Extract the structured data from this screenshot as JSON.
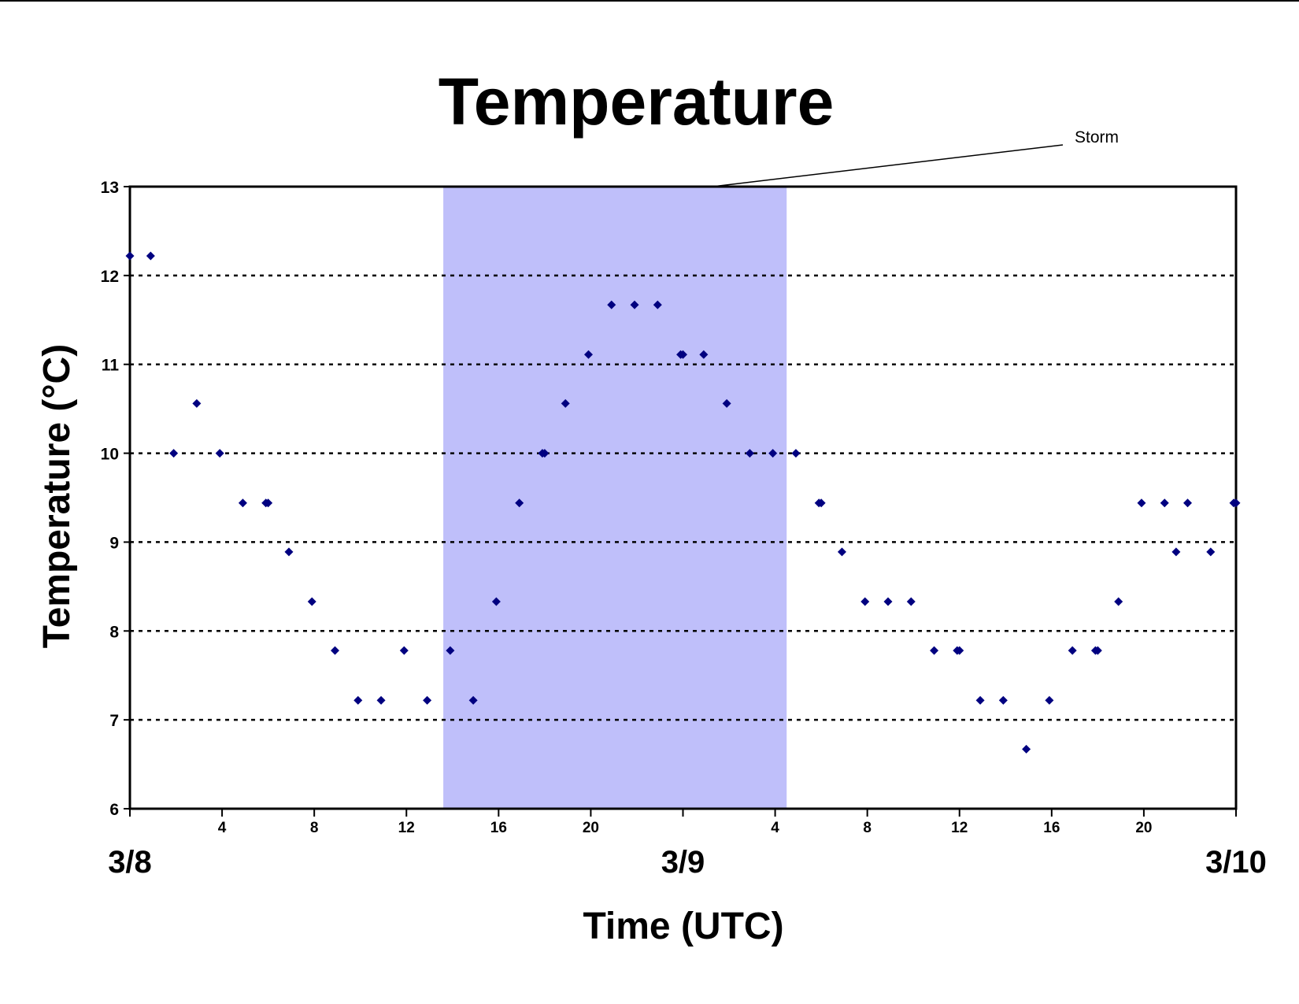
{
  "chart_data": {
    "type": "scatter",
    "title": "Temperature",
    "xlabel": "Time (UTC)",
    "ylabel": "Temperature (°C)",
    "x_unit": "hours UTC from 3/8 00:00",
    "xlim": [
      0,
      48
    ],
    "ylim": [
      6,
      13
    ],
    "y_ticks": [
      "6",
      "7",
      "8",
      "9",
      "10",
      "11",
      "12",
      "13"
    ],
    "x_tick_labels": [
      "4",
      "8",
      "12",
      "16",
      "20",
      "4",
      "8",
      "12",
      "16",
      "20"
    ],
    "x_tick_hours": [
      4,
      8,
      12,
      16,
      20,
      28,
      32,
      36,
      40,
      44
    ],
    "date_labels": [
      {
        "hour": 0,
        "label": "3/8"
      },
      {
        "hour": 24,
        "label": "3/9"
      },
      {
        "hour": 48,
        "label": "3/10"
      }
    ],
    "gridlines": "dotted horizontal at each degree",
    "highlight": {
      "label": "Storm",
      "x_start": 13.6,
      "x_end": 28.5,
      "color": "#bfbffa"
    },
    "marker_color": "#000080",
    "points": [
      {
        "x": 0,
        "y": 12.22
      },
      {
        "x": 0.9,
        "y": 12.22
      },
      {
        "x": 1.9,
        "y": 10.0
      },
      {
        "x": 2.9,
        "y": 10.56
      },
      {
        "x": 3.9,
        "y": 10.0
      },
      {
        "x": 4.9,
        "y": 9.44
      },
      {
        "x": 5.9,
        "y": 9.44
      },
      {
        "x": 6.0,
        "y": 9.44
      },
      {
        "x": 6.9,
        "y": 8.89
      },
      {
        "x": 7.9,
        "y": 8.33
      },
      {
        "x": 8.9,
        "y": 7.78
      },
      {
        "x": 9.9,
        "y": 7.22
      },
      {
        "x": 10.9,
        "y": 7.22
      },
      {
        "x": 11.9,
        "y": 7.78
      },
      {
        "x": 12.9,
        "y": 7.22
      },
      {
        "x": 13.9,
        "y": 7.78
      },
      {
        "x": 14.9,
        "y": 7.22
      },
      {
        "x": 15.9,
        "y": 8.33
      },
      {
        "x": 16.9,
        "y": 9.44
      },
      {
        "x": 17.9,
        "y": 10.0
      },
      {
        "x": 18.0,
        "y": 10.0
      },
      {
        "x": 18.9,
        "y": 10.56
      },
      {
        "x": 19.9,
        "y": 11.11
      },
      {
        "x": 20.9,
        "y": 11.67
      },
      {
        "x": 21.9,
        "y": 11.67
      },
      {
        "x": 22.9,
        "y": 11.67
      },
      {
        "x": 23.9,
        "y": 11.11
      },
      {
        "x": 24.0,
        "y": 11.11
      },
      {
        "x": 24.9,
        "y": 11.11
      },
      {
        "x": 25.9,
        "y": 10.56
      },
      {
        "x": 26.9,
        "y": 10.0
      },
      {
        "x": 27.9,
        "y": 10.0
      },
      {
        "x": 28.9,
        "y": 10.0
      },
      {
        "x": 29.9,
        "y": 9.44
      },
      {
        "x": 30.0,
        "y": 9.44
      },
      {
        "x": 30.9,
        "y": 8.89
      },
      {
        "x": 31.9,
        "y": 8.33
      },
      {
        "x": 32.9,
        "y": 8.33
      },
      {
        "x": 33.9,
        "y": 8.33
      },
      {
        "x": 34.9,
        "y": 7.78
      },
      {
        "x": 35.9,
        "y": 7.78
      },
      {
        "x": 36.0,
        "y": 7.78
      },
      {
        "x": 36.9,
        "y": 7.22
      },
      {
        "x": 37.9,
        "y": 7.22
      },
      {
        "x": 38.9,
        "y": 6.67
      },
      {
        "x": 39.9,
        "y": 7.22
      },
      {
        "x": 40.9,
        "y": 7.78
      },
      {
        "x": 41.9,
        "y": 7.78
      },
      {
        "x": 42.0,
        "y": 7.78
      },
      {
        "x": 42.9,
        "y": 8.33
      },
      {
        "x": 43.9,
        "y": 9.44
      },
      {
        "x": 44.9,
        "y": 9.44
      },
      {
        "x": 45.4,
        "y": 8.89
      },
      {
        "x": 45.9,
        "y": 9.44
      },
      {
        "x": 46.9,
        "y": 8.89
      },
      {
        "x": 47.9,
        "y": 9.44
      },
      {
        "x": 48.0,
        "y": 9.44
      }
    ]
  }
}
